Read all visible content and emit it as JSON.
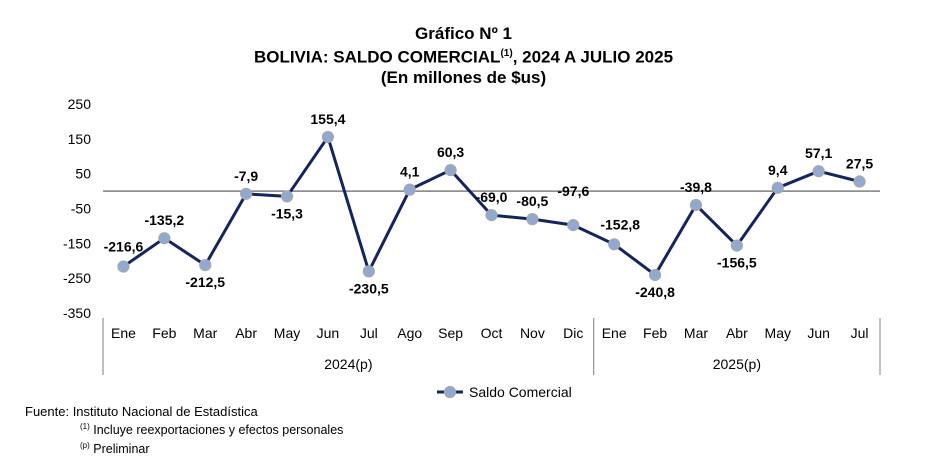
{
  "titles": {
    "line1": "Gráfico Nº 1",
    "line2_main": "BOLIVIA: SALDO COMERCIAL",
    "line2_sup": "(1)",
    "line2_rest": ", 2024 A JULIO 2025",
    "line3": "(En millones de $us)"
  },
  "footer": {
    "source": "Fuente: Instituto Nacional de Estadística",
    "note1_sup": "(1)",
    "note1_text": " Incluye reexportaciones y efectos personales",
    "note2_sup": "(p)",
    "note2_text": " Preliminar"
  },
  "chart_data": {
    "type": "line",
    "categories": [
      "Ene",
      "Feb",
      "Mar",
      "Abr",
      "May",
      "Jun",
      "Jul",
      "Ago",
      "Sep",
      "Oct",
      "Nov",
      "Dic",
      "Ene",
      "Feb",
      "Mar",
      "Abr",
      "May",
      "Jun",
      "Jul"
    ],
    "groups": [
      {
        "label": "2024(p)",
        "count": 12
      },
      {
        "label": "2025(p)",
        "count": 7
      }
    ],
    "series": [
      {
        "name": "Saldo Comercial",
        "values": [
          -216.6,
          -135.2,
          -212.5,
          -7.9,
          -15.3,
          155.4,
          -230.5,
          4.1,
          60.3,
          -69.0,
          -80.5,
          -97.6,
          -152.8,
          -240.8,
          -39.8,
          -156.5,
          9.4,
          57.1,
          27.5
        ],
        "labels": [
          "-216,6",
          "-135,2",
          "-212,5",
          "-7,9",
          "-15,3",
          "155,4",
          "-230,5",
          "4,1",
          "60,3",
          "-69,0",
          "-80,5",
          "-97,6",
          "-152,8",
          "-240,8",
          "-39,8",
          "-156,5",
          "9,4",
          "57,1",
          "27,5"
        ],
        "color": "#13245e",
        "marker_color": "#8fa9d1"
      }
    ],
    "yticks": [
      250,
      150,
      50,
      -50,
      -150,
      -250,
      -350
    ],
    "ylim": [
      -350,
      250
    ],
    "legend_position": "bottom-center",
    "grid": false
  }
}
